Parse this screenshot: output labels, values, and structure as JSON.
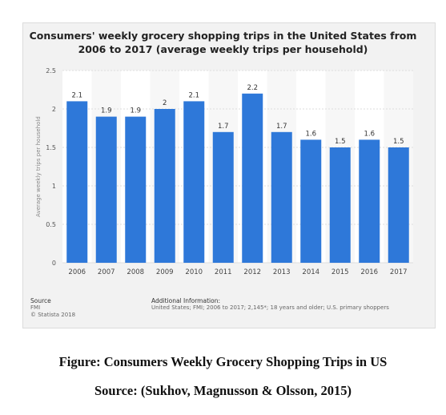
{
  "chart_data": {
    "type": "bar",
    "title_line1": "Consumers' weekly grocery shopping trips in the United States from",
    "title_line2": "2006 to 2017 (average weekly trips per household)",
    "ylabel": "Average weekly trips per household",
    "xlabel": "",
    "categories": [
      "2006",
      "2007",
      "2008",
      "2009",
      "2010",
      "2011",
      "2012",
      "2013",
      "2014",
      "2015",
      "2016",
      "2017"
    ],
    "values": [
      2.1,
      1.9,
      1.9,
      2,
      2.1,
      1.7,
      2.2,
      1.7,
      1.6,
      1.5,
      1.6,
      1.5
    ],
    "value_labels": [
      "2.1",
      "1.9",
      "1.9",
      "2",
      "2.1",
      "1.7",
      "2.2",
      "1.7",
      "1.6",
      "1.5",
      "1.6",
      "1.5"
    ],
    "ylim": [
      0,
      2.5
    ],
    "yticks": [
      "0",
      "0.5",
      "1",
      "1.5",
      "2",
      "2.5"
    ],
    "bar_color": "#2e78d9",
    "grid": true
  },
  "footer": {
    "source_heading": "Source",
    "source_lines": [
      "FMI",
      "© Statista 2018"
    ],
    "additional_heading": "Additional Information:",
    "additional_text": "United States; FMI; 2006 to 2017; 2,145*; 18 years and older; U.S. primary shoppers"
  },
  "caption": {
    "figure": "Figure: Consumers Weekly Grocery Shopping Trips in US",
    "source": "Source: (Sukhov, Magnusson & Olsson, 2015)"
  }
}
